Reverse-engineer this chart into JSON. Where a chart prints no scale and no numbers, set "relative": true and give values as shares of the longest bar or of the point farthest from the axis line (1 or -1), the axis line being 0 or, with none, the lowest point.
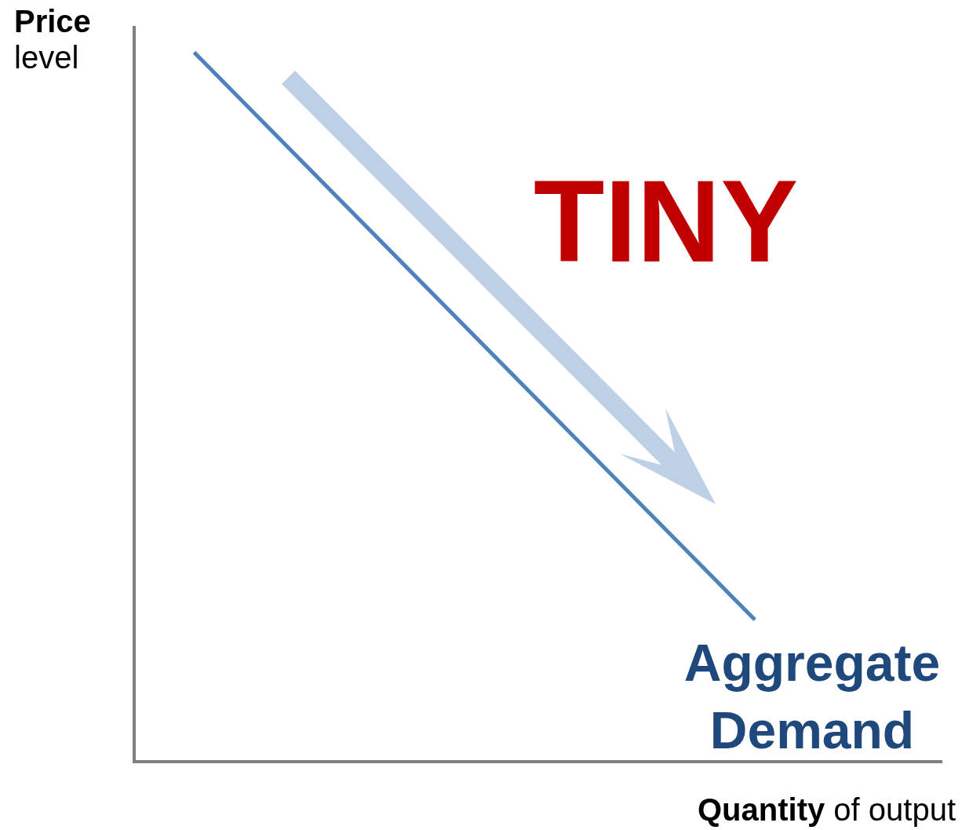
{
  "chart_data": {
    "type": "line",
    "relative": true,
    "xlabel": "Quantity of output",
    "ylabel": "Price level",
    "categories": [
      null,
      null
    ],
    "marker": "none",
    "series": [
      {
        "name": "Aggregate Demand",
        "color": "#4f81bd",
        "values": [
          1,
          0.2
        ]
      }
    ],
    "annotations": [
      "TINY"
    ]
  }
}
